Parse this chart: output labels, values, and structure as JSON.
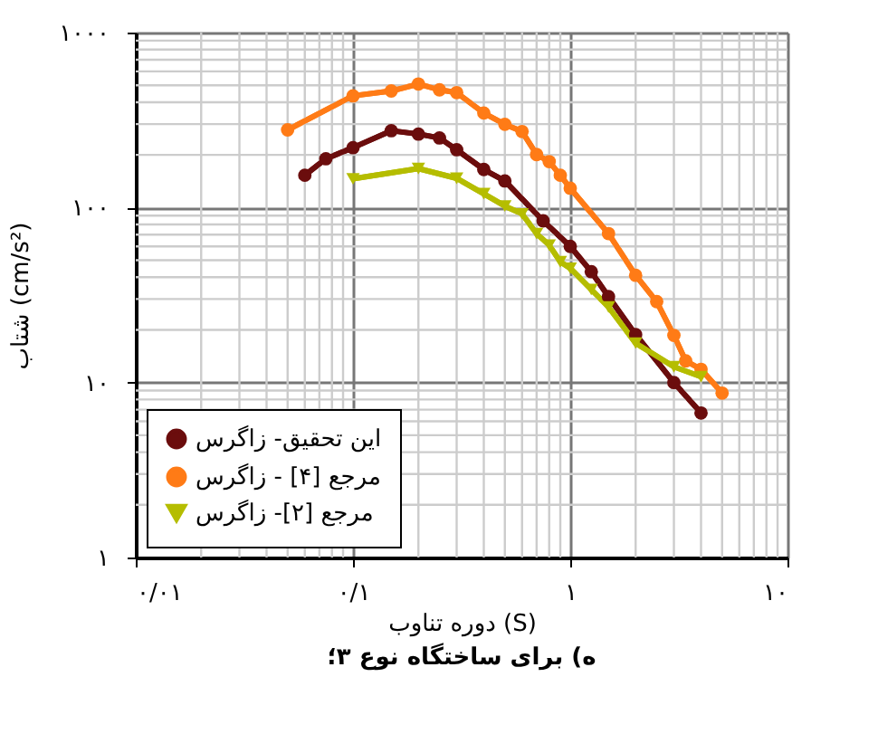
{
  "chart_data": {
    "type": "line",
    "title": "ه) برای ساختگاه نوع ۳؛",
    "xlabel": "دوره تناوب (S)",
    "ylabel": "شتاب (cm/s²)",
    "log": "xy",
    "grid": true,
    "legend": "bottom left",
    "line_style": "solid",
    "xlim": [
      0.01,
      10
    ],
    "ylim": [
      1,
      1000
    ],
    "xticks": [
      {
        "value": 0.01,
        "label": "۰/۰۱"
      },
      {
        "value": 0.1,
        "label": "۰/۱"
      },
      {
        "value": 1,
        "label": "۱"
      },
      {
        "value": 10,
        "label": "۱۰"
      }
    ],
    "yticks": [
      {
        "value": 1,
        "label": "۱"
      },
      {
        "value": 10,
        "label": "۱۰"
      },
      {
        "value": 100,
        "label": "۱۰۰"
      },
      {
        "value": 1000,
        "label": "۱۰۰۰"
      }
    ],
    "series": [
      {
        "name": "این تحقیق- زاگرس",
        "color": "#6b0d0d",
        "marker": "circle",
        "x": [
          0.06,
          0.075,
          0.1,
          0.15,
          0.2,
          0.25,
          0.3,
          0.4,
          0.5,
          0.75,
          1,
          1.25,
          1.5,
          2,
          3,
          4
        ],
        "values": [
          153,
          190,
          220,
          275,
          263,
          250,
          214,
          165,
          142,
          84,
          60,
          43,
          31,
          18.8,
          10,
          6.7
        ]
      },
      {
        "name": "مرجع [۴] - زاگرس",
        "color": "#ff7b16",
        "marker": "circle",
        "x": [
          0.05,
          0.1,
          0.15,
          0.2,
          0.25,
          0.3,
          0.4,
          0.5,
          0.6,
          0.7,
          0.8,
          0.9,
          1,
          1.5,
          2,
          2.5,
          3,
          3.4,
          4,
          5
        ],
        "values": [
          278,
          435,
          464,
          508,
          471,
          454,
          347,
          299,
          272,
          201,
          183,
          153,
          129,
          71,
          41,
          29,
          18.6,
          13.3,
          11.9,
          8.7
        ]
      },
      {
        "name": "مرجع [۲]- زاگرس",
        "color": "#b5bd00",
        "marker": "triangle",
        "x": [
          0.1,
          0.2,
          0.3,
          0.4,
          0.5,
          0.6,
          0.7,
          0.8,
          0.9,
          1,
          1.25,
          1.5,
          2,
          3,
          4
        ],
        "values": [
          146,
          167,
          147,
          120,
          102,
          92,
          71,
          61,
          49,
          45,
          34,
          27,
          16.8,
          12.3,
          10.8
        ]
      }
    ]
  }
}
